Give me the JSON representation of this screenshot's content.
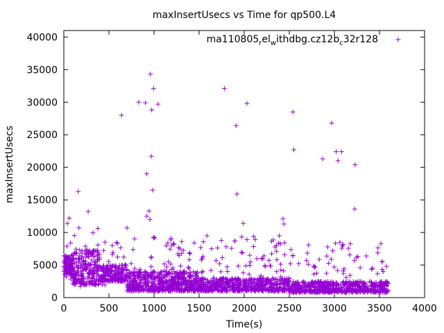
{
  "chart_data": {
    "type": "scatter",
    "title": "maxInsertUsecs vs Time for qp500.L4",
    "xlabel": "Time(s)",
    "ylabel": "maxInsertUsecs",
    "xlim": [
      0,
      4000
    ],
    "ylim": [
      0,
      41000
    ],
    "x_ticks": [
      0,
      500,
      1000,
      1500,
      2000,
      2500,
      3000,
      3500,
      4000
    ],
    "y_ticks": [
      0,
      5000,
      10000,
      15000,
      20000,
      25000,
      30000,
      35000,
      40000
    ],
    "grid": false,
    "legend_position": "top-right",
    "marker": "plus",
    "series_color": "#9400d3",
    "legend": {
      "base": "ma110805",
      "sub1": "r",
      "mid1": "el",
      "sub2": "w",
      "mid2": "ithdbg.cz12b",
      "sub3": "c",
      "tail": "32r128"
    },
    "series": [
      {
        "name": "ma110805_rel_withdbg.cz12b_c32r128",
        "points": [
          [
            640,
            28000
          ],
          [
            830,
            30000
          ],
          [
            905,
            29900
          ],
          [
            960,
            34300
          ],
          [
            975,
            28800
          ],
          [
            995,
            32100
          ],
          [
            1045,
            29700
          ],
          [
            970,
            21700
          ],
          [
            920,
            19000
          ],
          [
            985,
            16500
          ],
          [
            945,
            13300
          ],
          [
            920,
            12500
          ],
          [
            955,
            12000
          ],
          [
            1780,
            32100
          ],
          [
            2030,
            29800
          ],
          [
            1910,
            26400
          ],
          [
            1920,
            15900
          ],
          [
            1990,
            11400
          ],
          [
            2540,
            28500
          ],
          [
            2550,
            22700
          ],
          [
            2970,
            26800
          ],
          [
            3020,
            22400
          ],
          [
            3080,
            22400
          ],
          [
            3040,
            21000
          ],
          [
            2870,
            21300
          ],
          [
            3230,
            20400
          ],
          [
            3225,
            13600
          ],
          [
            160,
            16300
          ],
          [
            270,
            13200
          ],
          [
            60,
            12200
          ],
          [
            40,
            11400
          ],
          [
            700,
            10700
          ],
          [
            1800,
            7800
          ],
          [
            2430,
            12100
          ],
          [
            2440,
            11300
          ]
        ],
        "bulk": [
          {
            "x": [
              0,
              100
            ],
            "y": [
              3500,
              6500
            ],
            "extra": [
              1500,
              12000
            ],
            "n": 110
          },
          {
            "x": [
              100,
              400
            ],
            "y": [
              2000,
              7500
            ],
            "extra": [
              1500,
              11000
            ],
            "n": 230
          },
          {
            "x": [
              400,
              700
            ],
            "y": [
              2500,
              5000
            ],
            "extra": [
              1500,
              9000
            ],
            "n": 200
          },
          {
            "x": [
              700,
              1500
            ],
            "y": [
              1000,
              4000
            ],
            "extra": [
              4000,
              9500
            ],
            "n": 600
          },
          {
            "x": [
              1500,
              2500
            ],
            "y": [
              1000,
              3000
            ],
            "extra": [
              3000,
              9500
            ],
            "n": 600
          },
          {
            "x": [
              2500,
              3600
            ],
            "y": [
              800,
              2500
            ],
            "extra": [
              3000,
              8500
            ],
            "n": 600
          }
        ]
      }
    ]
  }
}
